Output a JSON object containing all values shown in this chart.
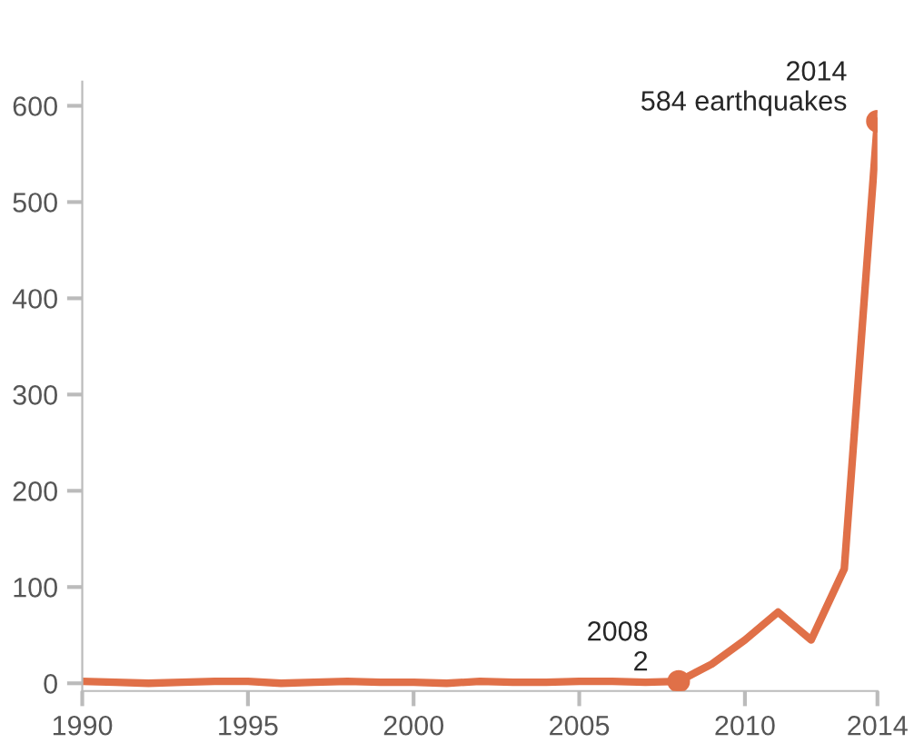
{
  "chart_data": {
    "type": "line",
    "x": [
      1990,
      1991,
      1992,
      1993,
      1994,
      1995,
      1996,
      1997,
      1998,
      1999,
      2000,
      2001,
      2002,
      2003,
      2004,
      2005,
      2006,
      2007,
      2008,
      2009,
      2010,
      2011,
      2012,
      2013,
      2014
    ],
    "series": [
      {
        "color": "#e07048",
        "values": [
          2,
          1,
          0,
          1,
          2,
          2,
          0,
          1,
          2,
          1,
          1,
          0,
          2,
          1,
          1,
          2,
          2,
          1,
          2,
          20,
          45,
          74,
          45,
          119,
          584
        ]
      }
    ],
    "xlim": [
      1990,
      2014
    ],
    "xticks": [
      1990,
      1995,
      2000,
      2005,
      2010,
      2014
    ],
    "ylim": [
      -8,
      625
    ],
    "yticks": [
      0,
      100,
      200,
      300,
      400,
      500,
      600
    ],
    "grid": false,
    "legend": false,
    "marker": "none",
    "line_style": "solid",
    "annotations": [
      {
        "text": "2014\n584 earthquakes",
        "x": 2014,
        "y": 584
      },
      {
        "text": "2008\n2",
        "x": 2008,
        "y": 2
      }
    ]
  }
}
